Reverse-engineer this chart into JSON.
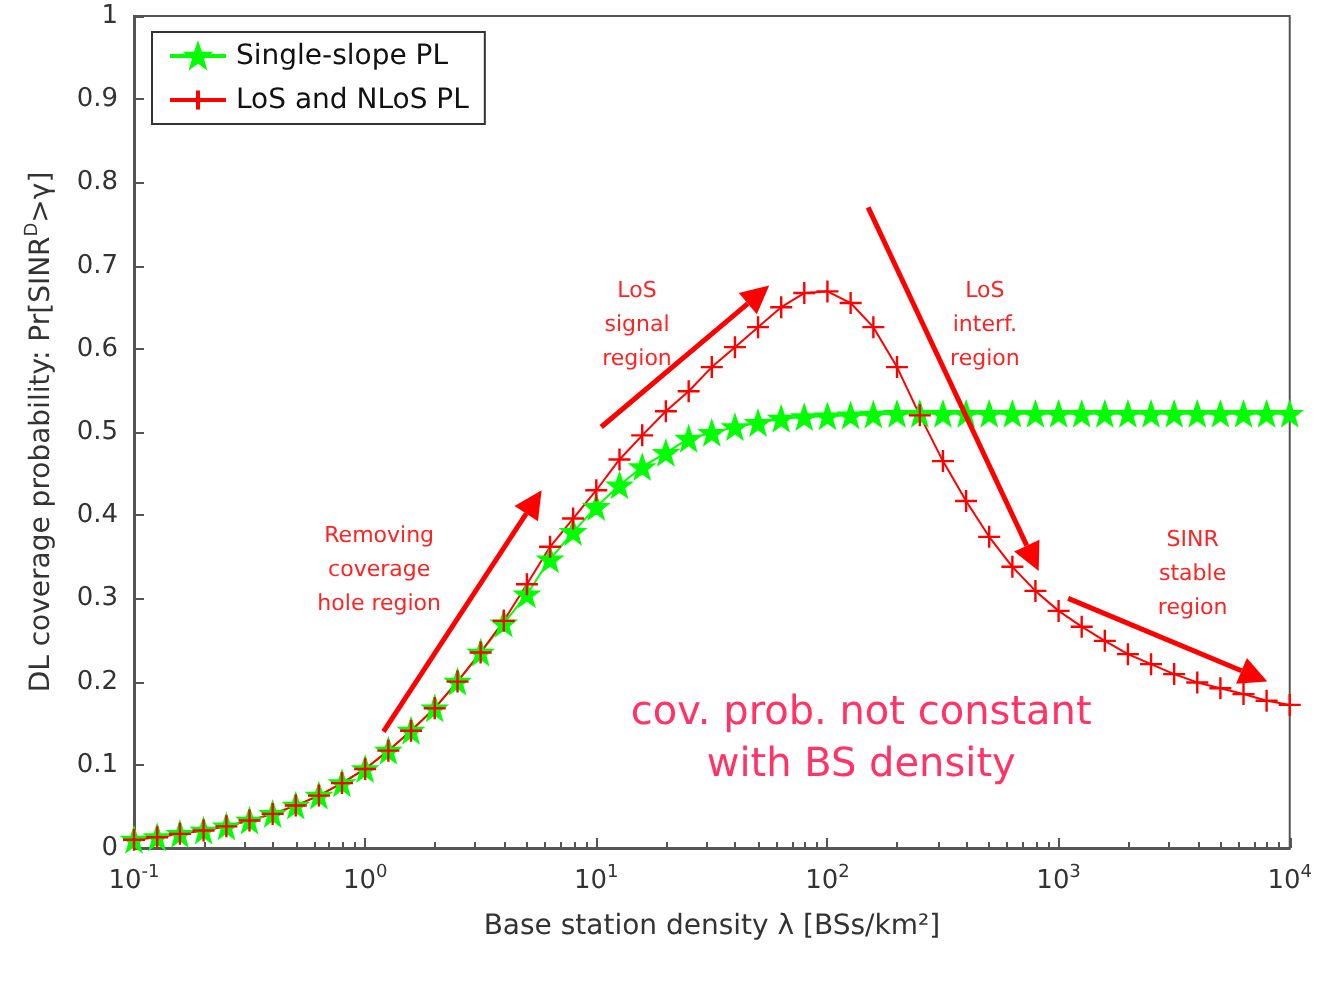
{
  "chart_data": {
    "type": "line",
    "xlabel": "Base station density λ [BSs/km²]",
    "ylabel": "DL coverage probability: Pr[SINR$^{D}$>γ]",
    "x": [
      0.1,
      0.126,
      0.158,
      0.2,
      0.251,
      0.316,
      0.398,
      0.501,
      0.631,
      0.794,
      1,
      1.26,
      1.58,
      2,
      2.51,
      3.16,
      3.98,
      5.01,
      6.31,
      7.94,
      10,
      12.6,
      15.8,
      20,
      25.1,
      31.6,
      39.8,
      50.1,
      63.1,
      79.4,
      100,
      126,
      158,
      200,
      251,
      316,
      398,
      501,
      631,
      794,
      1000,
      1259,
      1585,
      1995,
      2512,
      3162,
      3981,
      5012,
      6310,
      7943,
      10000
    ],
    "series": [
      {
        "name": "Single-slope PL",
        "color": "#00ff00",
        "marker": "star",
        "values": [
          0.01,
          0.013,
          0.017,
          0.021,
          0.026,
          0.033,
          0.041,
          0.051,
          0.063,
          0.078,
          0.095,
          0.117,
          0.141,
          0.168,
          0.2,
          0.235,
          0.27,
          0.305,
          0.347,
          0.38,
          0.41,
          0.436,
          0.458,
          0.475,
          0.492,
          0.499,
          0.506,
          0.511,
          0.516,
          0.518,
          0.519,
          0.52,
          0.521,
          0.522,
          0.522,
          0.522,
          0.522,
          0.522,
          0.522,
          0.522,
          0.522,
          0.522,
          0.522,
          0.522,
          0.522,
          0.522,
          0.522,
          0.522,
          0.522,
          0.522,
          0.522
        ]
      },
      {
        "name": "LoS and NLoS PL",
        "color": "#ff0000",
        "marker": "cross",
        "values": [
          0.01,
          0.013,
          0.017,
          0.021,
          0.026,
          0.033,
          0.041,
          0.051,
          0.063,
          0.078,
          0.095,
          0.117,
          0.141,
          0.168,
          0.2,
          0.235,
          0.273,
          0.317,
          0.362,
          0.396,
          0.43,
          0.467,
          0.496,
          0.525,
          0.549,
          0.578,
          0.602,
          0.626,
          0.65,
          0.667,
          0.669,
          0.655,
          0.626,
          0.578,
          0.52,
          0.465,
          0.417,
          0.374,
          0.338,
          0.309,
          0.285,
          0.266,
          0.249,
          0.233,
          0.221,
          0.209,
          0.199,
          0.192,
          0.185,
          0.177,
          0.172
        ]
      }
    ],
    "xlim": [
      0.1,
      10000
    ],
    "xticks": [
      {
        "value": 0.1,
        "label": "10$^{-1}$"
      },
      {
        "value": 1,
        "label": "10$^{0}$"
      },
      {
        "value": 10,
        "label": "10$^{1}$"
      },
      {
        "value": 100,
        "label": "10$^{2}$"
      },
      {
        "value": 1000,
        "label": "10$^{3}$"
      },
      {
        "value": 10000,
        "label": "10$^{4}$"
      }
    ],
    "ylim": [
      0,
      1
    ],
    "yticks": [
      0,
      0.1,
      0.2,
      0.3,
      0.4,
      0.5,
      0.6,
      0.7,
      0.8,
      0.9,
      1
    ],
    "log": "x",
    "grid": false,
    "legend": "top left",
    "annotations": [
      "Removing\ncoverage\nhole region",
      "LoS\nsignal\nregion",
      "LoS\ninterf.\nregion",
      "SINR\nstable\nregion",
      "cov. prob. not constant\nwith BS density"
    ]
  }
}
